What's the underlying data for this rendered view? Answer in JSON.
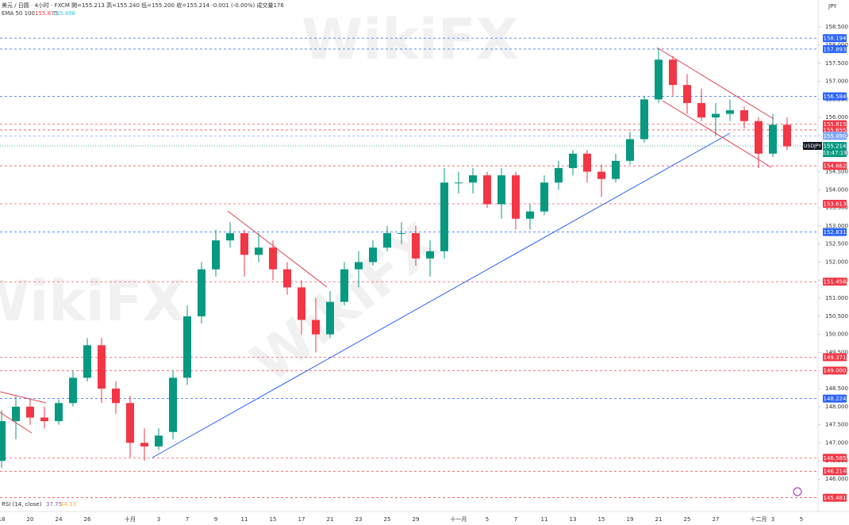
{
  "chart_data": {
    "type": "candlestick",
    "header": "美元 / 日圆 · 4小时 · FXCM  開=155.213 高=155.240 低=155.200 收=155.214 -0.001 (-0.00%) 成交量176",
    "indicator": {
      "name": "EMA 50 100",
      "values": [
        155.875,
        155.498
      ]
    },
    "rsi": {
      "name": "RSI (14, close)",
      "values": [
        37.75,
        44.33
      ]
    },
    "currency": "JPY",
    "watermark": "WikiFX",
    "categories": [
      "18",
      null,
      "20",
      null,
      "24",
      null,
      "26",
      null,
      null,
      "十月",
      null,
      "3",
      null,
      "7",
      null,
      "9",
      null,
      "11",
      null,
      "15",
      null,
      "17",
      null,
      "21",
      null,
      "23",
      null,
      "25",
      null,
      "29",
      null,
      null,
      "十一月",
      null,
      "5",
      null,
      "7",
      null,
      "11",
      null,
      "13",
      null,
      "15",
      null,
      "19",
      null,
      "21",
      null,
      "25",
      null,
      "27",
      null,
      null,
      "十二月",
      "3",
      null,
      "5"
    ],
    "open": [
      146.5,
      147.6,
      148.0,
      147.7,
      147.6,
      148.1,
      148.8,
      149.7,
      148.5,
      148.1,
      147.0,
      146.9,
      147.3,
      148.8,
      150.5,
      151.8,
      152.6,
      152.8,
      152.2,
      152.4,
      151.8,
      151.3,
      150.4,
      150.0,
      150.9,
      151.8,
      152.0,
      152.4,
      152.8,
      152.8,
      152.1,
      152.3,
      154.2,
      154.2,
      154.4,
      153.6,
      154.4,
      153.2,
      153.4,
      154.2,
      154.6,
      155.0,
      154.5,
      154.3,
      154.8,
      155.4,
      156.5,
      157.6,
      156.9,
      156.4,
      156.0,
      156.1,
      156.2,
      155.9,
      155.0,
      155.8,
      null
    ],
    "high": [
      147.9,
      148.3,
      148.2,
      148.0,
      148.2,
      149.0,
      149.9,
      149.9,
      148.7,
      148.3,
      147.4,
      147.4,
      149.0,
      150.8,
      152.0,
      152.9,
      153.1,
      152.9,
      152.8,
      152.6,
      152.0,
      151.5,
      151.0,
      151.2,
      152.0,
      152.3,
      152.6,
      153.0,
      153.1,
      153.0,
      152.6,
      154.6,
      154.5,
      154.6,
      154.5,
      154.6,
      154.5,
      153.6,
      154.4,
      154.8,
      155.1,
      155.1,
      154.7,
      155.0,
      155.6,
      156.6,
      157.9,
      157.7,
      157.2,
      156.8,
      156.4,
      156.5,
      156.3,
      156.0,
      156.1,
      156.0,
      null
    ],
    "low": [
      146.3,
      147.1,
      147.5,
      147.4,
      147.5,
      148.0,
      148.7,
      148.1,
      147.8,
      146.6,
      146.5,
      146.8,
      147.1,
      148.6,
      150.3,
      151.6,
      152.4,
      151.6,
      152.0,
      151.5,
      151.1,
      150.0,
      149.5,
      149.9,
      150.8,
      151.3,
      151.9,
      152.3,
      152.5,
      151.9,
      151.6,
      152.1,
      153.9,
      153.9,
      153.5,
      153.2,
      152.9,
      152.9,
      153.3,
      154.0,
      154.4,
      154.2,
      153.8,
      154.2,
      154.7,
      155.3,
      156.4,
      156.6,
      156.1,
      155.9,
      155.5,
      155.9,
      155.7,
      154.6,
      154.9,
      155.1,
      null
    ],
    "close": [
      147.6,
      148.0,
      147.7,
      147.6,
      148.1,
      148.8,
      149.7,
      148.5,
      148.1,
      147.0,
      146.9,
      147.2,
      148.8,
      150.5,
      151.8,
      152.6,
      152.8,
      152.2,
      152.4,
      151.8,
      151.3,
      150.4,
      150.0,
      150.9,
      151.8,
      152.0,
      152.4,
      152.8,
      152.8,
      152.1,
      152.3,
      154.2,
      154.2,
      154.4,
      153.6,
      154.4,
      153.2,
      153.4,
      154.2,
      154.6,
      155.0,
      154.5,
      154.3,
      154.8,
      155.4,
      156.5,
      157.6,
      156.9,
      156.4,
      156.0,
      156.1,
      156.2,
      155.9,
      155.0,
      155.8,
      155.2,
      null
    ],
    "up_color": "#089981",
    "down_color": "#f23645",
    "ylim": [
      145.1,
      159.25
    ],
    "yticks": [
      {
        "value": 146,
        "label": "146.000"
      },
      {
        "value": 146.5,
        "label": "146.500"
      },
      {
        "value": 147,
        "label": "147.000"
      },
      {
        "value": 147.5,
        "label": "147.500"
      },
      {
        "value": 148,
        "label": "148.000"
      },
      {
        "value": 148.5,
        "label": "148.500"
      },
      {
        "value": 149,
        "label": "149.000"
      },
      {
        "value": 149.5,
        "label": "149.500"
      },
      {
        "value": 150,
        "label": "150.000"
      },
      {
        "value": 150.5,
        "label": "150.500"
      },
      {
        "value": 151,
        "label": "151.000"
      },
      {
        "value": 151.5,
        "label": "151.500"
      },
      {
        "value": 152,
        "label": "152.000"
      },
      {
        "value": 152.5,
        "label": "152.500"
      },
      {
        "value": 153,
        "label": "153.000"
      },
      {
        "value": 153.5,
        "label": "153.500"
      },
      {
        "value": 154,
        "label": "154.000"
      },
      {
        "value": 154.5,
        "label": "154.500"
      },
      {
        "value": 155,
        "label": "155.000"
      },
      {
        "value": 155.5,
        "label": "155.500"
      },
      {
        "value": 156,
        "label": "156.000"
      },
      {
        "value": 156.5,
        "label": "156.500"
      },
      {
        "value": 157,
        "label": "157.000"
      },
      {
        "value": 157.5,
        "label": "157.500"
      },
      {
        "value": 158,
        "label": "158.000"
      },
      {
        "value": 158.5,
        "label": "158.500"
      }
    ],
    "grid": false,
    "levels": [
      {
        "value": 158.194,
        "color": "#2962ff"
      },
      {
        "value": 157.893,
        "color": "#2962ff"
      },
      {
        "value": 156.584,
        "color": "#2962ff"
      },
      {
        "value": 155.815,
        "color": "#f23645"
      },
      {
        "value": 155.655,
        "color": "#f23645"
      },
      {
        "value": 155.49,
        "label": "155.490",
        "color": "#7fa8ff"
      },
      {
        "value": 154.662,
        "color": "#f23645"
      },
      {
        "value": 153.613,
        "color": "#f23645"
      },
      {
        "value": 152.831,
        "color": "#2962ff"
      },
      {
        "value": 151.458,
        "color": "#f23645"
      },
      {
        "value": 149.371,
        "color": "#f23645"
      },
      {
        "value": 149,
        "label": "149.000",
        "color": "#f23645"
      },
      {
        "value": 148.224,
        "color": "#2962ff"
      },
      {
        "value": 146.585,
        "color": "#f23645"
      },
      {
        "value": 146.214,
        "color": "#f23645"
      },
      {
        "value": 145.481,
        "color": "#f23645"
      }
    ],
    "current": {
      "symbol": "USDJPY",
      "price": 155.214,
      "countdown": "03:47:19",
      "color": "#089981"
    }
  }
}
